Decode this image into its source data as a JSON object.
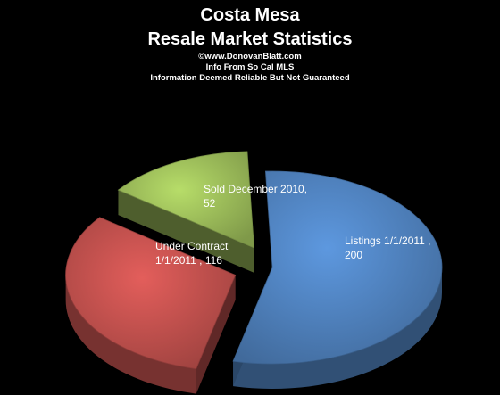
{
  "chart_data": {
    "type": "pie",
    "title_lines": [
      "Costa Mesa",
      "Resale Market Statistics"
    ],
    "subtitle_lines": [
      "©www.DonovanBlatt.com",
      "Info  From So Cal MLS",
      "Information Deemed Reliable But Not Guaranteed"
    ],
    "slices": [
      {
        "category": "Listings 1/1/2011",
        "value": 200,
        "label_lines": [
          "Listings 1/1/2011   ,",
          "200"
        ],
        "color": "#4f81bd",
        "exploded": false
      },
      {
        "category": "Under Contract 1/1/2011",
        "value": 116,
        "label_lines": [
          "Under Contract",
          "1/1/2011   , 116"
        ],
        "color": "#c0504d",
        "exploded": true
      },
      {
        "category": "Sold December 2010",
        "value": 52,
        "label_lines": [
          "Sold December  2010,",
          "52"
        ],
        "color": "#9bbb59",
        "exploded": true
      }
    ],
    "three_d": true,
    "legend": "none"
  }
}
